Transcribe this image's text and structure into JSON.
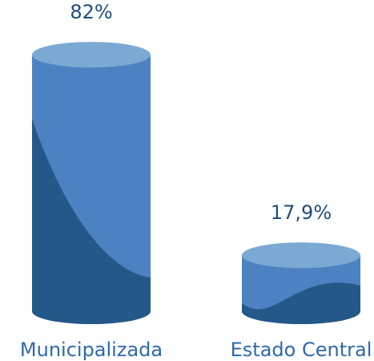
{
  "chart_data": {
    "type": "cylinder",
    "categories": [
      "Municipalizada",
      "Estado Central"
    ],
    "values": [
      82,
      17.9
    ],
    "value_labels": [
      "82%",
      "17,9%"
    ],
    "colors": {
      "top": "#7ba9d3",
      "body": "#4d82c2",
      "shade": "#235888"
    }
  }
}
